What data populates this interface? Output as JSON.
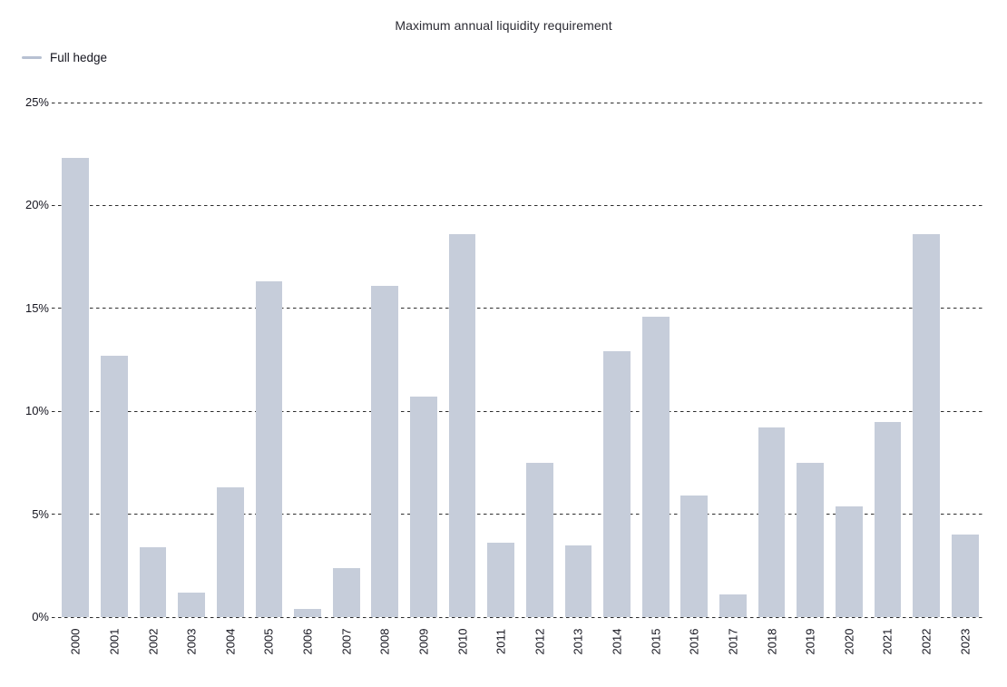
{
  "title": "Maximum annual liquidity requirement",
  "legend": {
    "label": "Full hedge",
    "marker_color": "#b7c1d2"
  },
  "colors": {
    "bar": "#c6cdda",
    "text": "#15151f",
    "title_text": "#2b2b33",
    "gridline": "#2e2e2e",
    "background": "#ffffff"
  },
  "chart_data": {
    "type": "bar",
    "title": "Maximum annual liquidity requirement",
    "xlabel": "",
    "ylabel": "",
    "categories": [
      "2000",
      "2001",
      "2002",
      "2003",
      "2004",
      "2005",
      "2006",
      "2007",
      "2008",
      "2009",
      "2010",
      "2011",
      "2012",
      "2013",
      "2014",
      "2015",
      "2016",
      "2017",
      "2018",
      "2019",
      "2020",
      "2021",
      "2022",
      "2023"
    ],
    "series": [
      {
        "name": "Full hedge",
        "values": [
          22.3,
          12.7,
          3.4,
          1.2,
          6.3,
          16.3,
          0.4,
          2.4,
          16.1,
          10.7,
          18.6,
          3.6,
          7.5,
          3.5,
          12.9,
          14.6,
          5.9,
          1.1,
          9.2,
          7.5,
          5.4,
          9.5,
          18.6,
          4.0
        ]
      }
    ],
    "ylim": [
      0,
      25
    ],
    "y_ticks": [
      0,
      5,
      10,
      15,
      20,
      25
    ],
    "y_tick_labels": [
      "0%",
      "5%",
      "10%",
      "15%",
      "20%",
      "25%"
    ],
    "grid": "horizontal-dashed",
    "legend_position": "top-left",
    "x_tick_rotation": -90
  }
}
